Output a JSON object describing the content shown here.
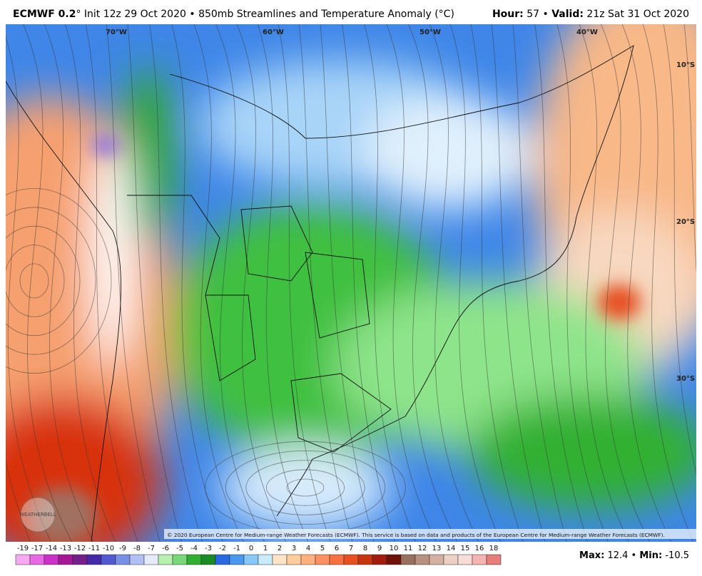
{
  "header": {
    "model": "ECMWF 0.2",
    "degree": "°",
    "init": "Init 12z 29 Oct 2020",
    "separator": "•",
    "product": "850mb Streamlines and Temperature Anomaly (°C)",
    "hour_label": "Hour:",
    "hour": "57",
    "valid_label": "Valid:",
    "valid": "21z Sat 31 Oct 2020"
  },
  "map": {
    "lon_labels": [
      "70°W",
      "60°W",
      "50°W",
      "40°W"
    ],
    "lat_labels": [
      "10°S",
      "20°S",
      "30°S"
    ],
    "copyright": "© 2020 European Centre for Medium-range Weather Forecasts (ECMWF). This service is based on data and products of the European Centre for Medium-range Weather Forecasts (ECMWF).",
    "logo": "WEATHERBELL"
  },
  "colorbar": {
    "values": [
      -19,
      -17,
      -14,
      -13,
      -12,
      -11,
      -10,
      -9,
      -8,
      -7,
      -6,
      -5,
      -4,
      -3,
      -2,
      -1,
      0,
      1,
      2,
      3,
      4,
      5,
      6,
      7,
      8,
      9,
      10,
      11,
      12,
      13,
      14,
      15,
      16,
      18
    ],
    "colors": [
      "#f7a8f0",
      "#e868e4",
      "#cc30c8",
      "#a41898",
      "#742088",
      "#4428a8",
      "#5058d4",
      "#7890e4",
      "#b0c0f4",
      "#e4ecfc",
      "#b8f0b0",
      "#78d878",
      "#30b030",
      "#188c20",
      "#2868e0",
      "#4898f0",
      "#88c8f8",
      "#c8ecfc",
      "#ffe4c8",
      "#ffcc9c",
      "#ffb07c",
      "#ff9060",
      "#f87040",
      "#e85020",
      "#c83410",
      "#a01c0c",
      "#701008",
      "#987060",
      "#b89080",
      "#d4b0a0",
      "#ecd0c4",
      "#f8dcd8",
      "#f4b4b0",
      "#e87c78"
    ]
  },
  "stats": {
    "max_label": "Max:",
    "max": 12.4,
    "separator": "•",
    "min_label": "Min:",
    "min": -10.5
  }
}
